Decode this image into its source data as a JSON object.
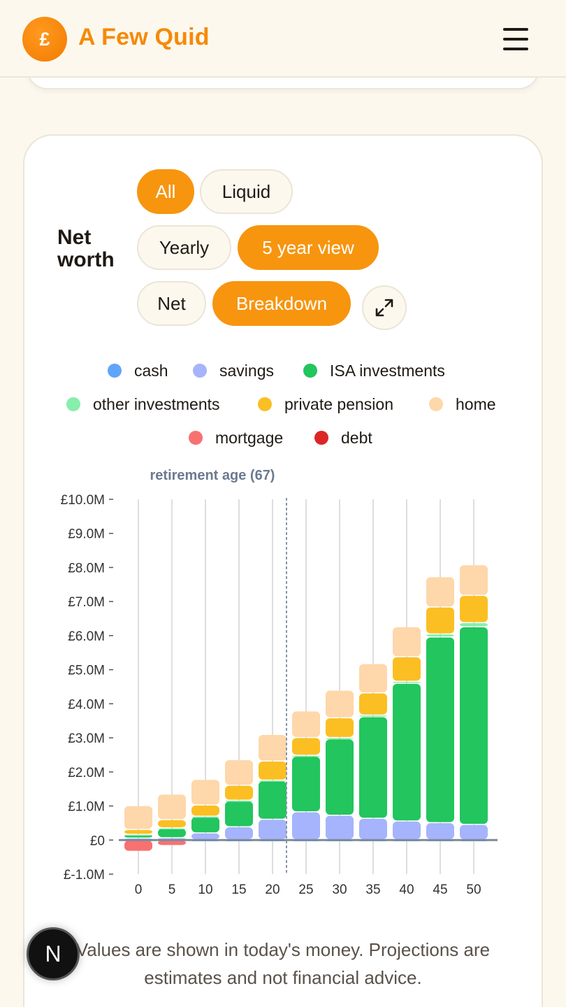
{
  "header": {
    "logo_symbol": "£",
    "title": "A Few Quid",
    "menu_icon": "hamburger-menu-icon"
  },
  "card": {
    "title_line1": "Net",
    "title_line2": "worth",
    "filters": {
      "scope": [
        {
          "label": "All",
          "active": true
        },
        {
          "label": "Liquid",
          "active": false
        }
      ],
      "period": [
        {
          "label": "Yearly",
          "active": false
        },
        {
          "label": "5 year view",
          "active": true
        }
      ],
      "mode": [
        {
          "label": "Net",
          "active": false
        },
        {
          "label": "Breakdown",
          "active": true
        }
      ]
    },
    "expand_icon": "expand-arrows-icon",
    "legend": [
      {
        "label": "cash",
        "color": "#60a5fa"
      },
      {
        "label": "savings",
        "color": "#a5b4fc"
      },
      {
        "label": "ISA investments",
        "color": "#22c55e"
      },
      {
        "label": "other investments",
        "color": "#86efac"
      },
      {
        "label": "private pension",
        "color": "#fbbf24"
      },
      {
        "label": "home",
        "color": "#fed7aa"
      },
      {
        "label": "mortgage",
        "color": "#f87171"
      },
      {
        "label": "debt",
        "color": "#dc2626"
      }
    ],
    "footnote": "Values are shown in today's money. Projections are estimates and not financial advice."
  },
  "chart_data": {
    "type": "bar",
    "stacked": true,
    "categories": [
      "0",
      "5",
      "10",
      "15",
      "20",
      "25",
      "30",
      "35",
      "40",
      "45",
      "50"
    ],
    "ylim": [
      -1000000,
      10000000
    ],
    "yticks": [
      "£10.0M",
      "£9.0M",
      "£8.0M",
      "£7.0M",
      "£6.0M",
      "£5.0M",
      "£4.0M",
      "£3.0M",
      "£2.0M",
      "£1.0M",
      "£0",
      "£-1.0M"
    ],
    "ytick_values": [
      10000000,
      9000000,
      8000000,
      7000000,
      6000000,
      5000000,
      4000000,
      3000000,
      2000000,
      1000000,
      0,
      -1000000
    ],
    "annotation": {
      "label": "retirement age (67)",
      "x_between": [
        "20",
        "25"
      ]
    },
    "series": [
      {
        "name": "cash",
        "color": "#60a5fa",
        "values": [
          10000,
          10000,
          10000,
          10000,
          10000,
          10000,
          10000,
          10000,
          10000,
          10000,
          10000
        ]
      },
      {
        "name": "savings",
        "color": "#a5b4fc",
        "values": [
          50000,
          60000,
          200000,
          380000,
          600000,
          820000,
          720000,
          630000,
          550000,
          500000,
          450000
        ]
      },
      {
        "name": "ISA investments",
        "color": "#22c55e",
        "values": [
          100000,
          280000,
          480000,
          760000,
          1130000,
          1630000,
          2240000,
          2980000,
          4040000,
          5450000,
          5800000
        ]
      },
      {
        "name": "other investments",
        "color": "#86efac",
        "values": [
          10000,
          10000,
          10000,
          20000,
          20000,
          30000,
          40000,
          50000,
          60000,
          90000,
          120000
        ]
      },
      {
        "name": "private pension",
        "color": "#fbbf24",
        "values": [
          140000,
          240000,
          330000,
          440000,
          560000,
          520000,
          580000,
          650000,
          720000,
          790000,
          800000
        ]
      },
      {
        "name": "home",
        "color": "#fed7aa",
        "values": [
          700000,
          750000,
          750000,
          750000,
          780000,
          780000,
          810000,
          860000,
          880000,
          890000,
          900000
        ]
      },
      {
        "name": "mortgage",
        "color": "#f87171",
        "values": [
          -330000,
          -160000,
          0,
          0,
          0,
          0,
          0,
          0,
          0,
          0,
          0
        ]
      },
      {
        "name": "debt",
        "color": "#dc2626",
        "values": [
          0,
          0,
          0,
          0,
          0,
          0,
          0,
          0,
          0,
          0,
          0
        ]
      }
    ]
  },
  "badge": {
    "letter": "N"
  }
}
